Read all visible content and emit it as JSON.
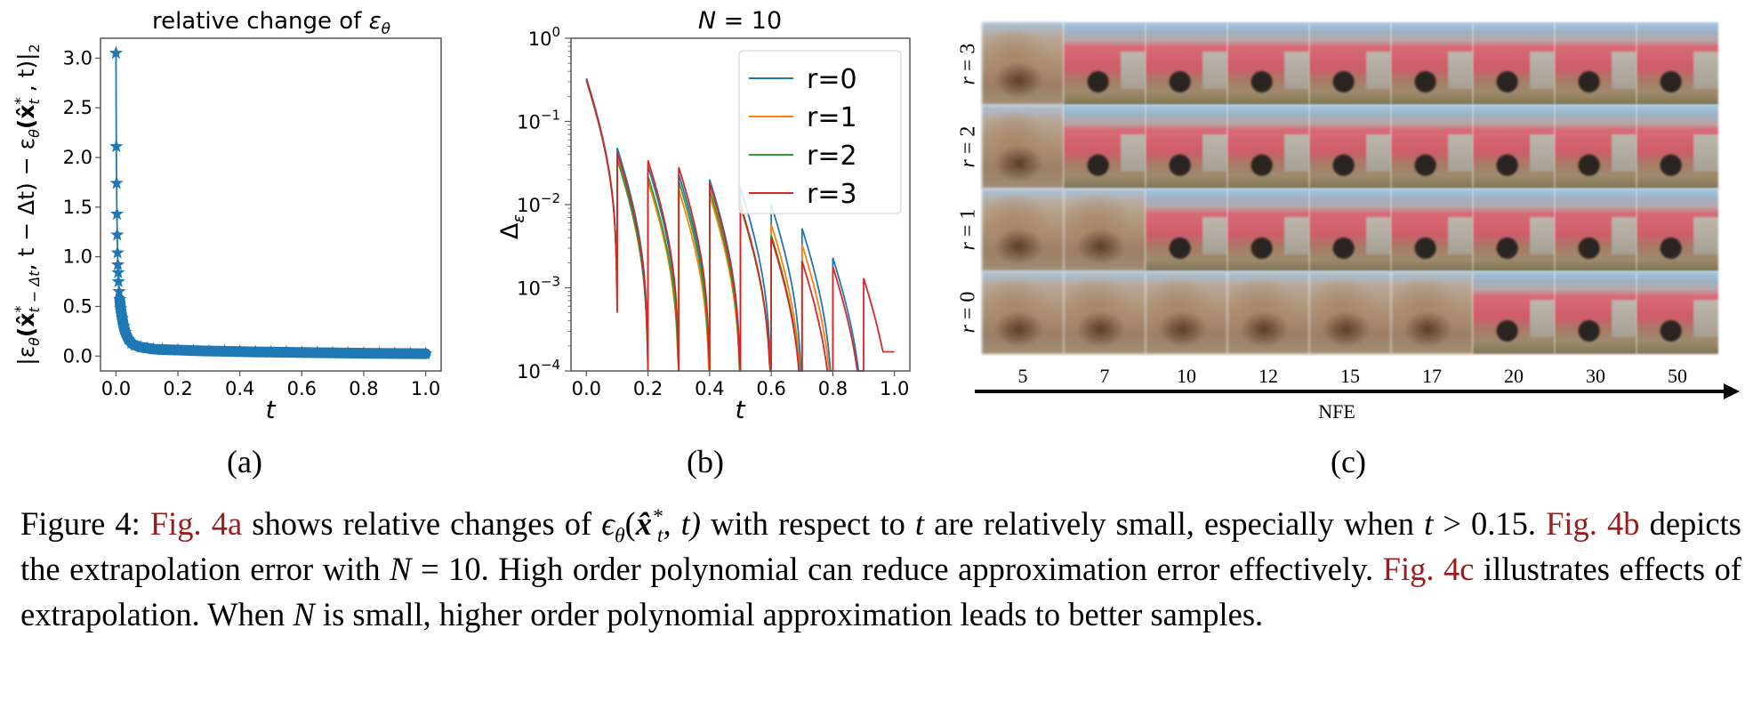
{
  "panels": {
    "a": {
      "subcaption": "(a)"
    },
    "b": {
      "subcaption": "(b)"
    },
    "c": {
      "subcaption": "(c)"
    }
  },
  "chart_data": [
    {
      "type": "line",
      "panel": "a",
      "title": "relative change of εθ",
      "title_parts": {
        "text": "relative change of ",
        "symbol": "ε",
        "sub": "θ"
      },
      "xlabel": "t",
      "ylabel": "|εθ(x̂*t−Δt, t − Δt) − εθ(x̂*t , t)|2",
      "ylabel_parts": {
        "open": "|ε",
        "s1": "θ",
        "p1": "(x̂",
        "sup1": "*",
        "sub1": "t − Δt",
        "p2": ", t − Δt) − ε",
        "s2": "θ",
        "p3": "(x̂",
        "sup2": "*",
        "sub2": "t",
        "p4": " , t)|",
        "sub3": "2"
      },
      "marker": "star",
      "color": "#1f77b4",
      "xlim": [
        -0.05,
        1.05
      ],
      "ylim": [
        -0.15,
        3.2
      ],
      "xticks": [
        "0.0",
        "0.2",
        "0.4",
        "0.6",
        "0.8",
        "1.0"
      ],
      "yticks": [
        "0.0",
        "0.5",
        "1.0",
        "1.5",
        "2.0",
        "2.5",
        "3.0"
      ],
      "x": [
        0,
        0.001,
        0.002,
        0.003,
        0.004,
        0.005,
        0.006,
        0.007,
        0.008,
        0.01,
        0.012,
        0.015,
        0.02,
        0.025,
        0.03,
        0.04,
        0.05,
        0.06,
        0.08,
        0.1,
        0.12,
        0.15,
        0.2,
        0.25,
        0.3,
        0.35,
        0.4,
        0.45,
        0.5,
        0.55,
        0.6,
        0.65,
        0.7,
        0.75,
        0.8,
        0.85,
        0.9,
        0.95,
        1.0
      ],
      "y": [
        3.05,
        2.11,
        1.74,
        1.43,
        1.22,
        1.04,
        0.92,
        0.84,
        0.75,
        0.65,
        0.57,
        0.48,
        0.38,
        0.3,
        0.24,
        0.17,
        0.13,
        0.11,
        0.09,
        0.08,
        0.07,
        0.065,
        0.06,
        0.055,
        0.05,
        0.048,
        0.045,
        0.042,
        0.04,
        0.038,
        0.036,
        0.034,
        0.032,
        0.03,
        0.028,
        0.027,
        0.026,
        0.025,
        0.024
      ]
    },
    {
      "type": "line",
      "panel": "b",
      "title": "N = 10",
      "title_parts": {
        "var": "N",
        "rest": " = 10"
      },
      "xlabel": "t",
      "ylabel": "Δε",
      "ylabel_parts": {
        "base": "Δ",
        "sub": "ε"
      },
      "yscale": "log",
      "xlim": [
        -0.05,
        1.05
      ],
      "ylim": [
        0.0001,
        1
      ],
      "xticks": [
        "0.0",
        "0.2",
        "0.4",
        "0.6",
        "0.8",
        "1.0"
      ],
      "yticks": [
        {
          "base": "10",
          "exp": "0"
        },
        {
          "base": "10",
          "exp": "−1"
        },
        {
          "base": "10",
          "exp": "−2"
        },
        {
          "base": "10",
          "exp": "−3"
        },
        {
          "base": "10",
          "exp": "−4"
        }
      ],
      "legend": "top-right",
      "segment_starts": [
        0,
        0.1,
        0.2,
        0.3,
        0.4,
        0.5,
        0.6,
        0.7,
        0.8,
        0.9
      ],
      "series": [
        {
          "name": "r=0",
          "color": "#1f77b4",
          "segment_start_values": [
            0.33,
            0.048,
            0.029,
            0.023,
            0.02,
            0.016,
            0.01,
            0.0052,
            0.0023,
            null
          ],
          "segment_end_values": [
            0.0015,
            0.0001,
            0.0001,
            0.0001,
            0.0001,
            0.0001,
            0.0001,
            0.0001,
            0.0001,
            null
          ]
        },
        {
          "name": "r=1",
          "color": "#ff7f0e",
          "segment_start_values": [
            0.31,
            0.036,
            0.019,
            0.015,
            0.013,
            0.0095,
            0.0058,
            0.0033,
            null,
            null
          ],
          "segment_end_values": [
            0.001,
            0.0001,
            0.0001,
            0.0001,
            0.0001,
            0.0001,
            0.0001,
            0.0001,
            null,
            null
          ]
        },
        {
          "name": "r=2",
          "color": "#2ca02c",
          "segment_start_values": [
            0.31,
            0.035,
            0.022,
            0.019,
            0.015,
            0.0095,
            0.0043,
            null,
            null,
            null
          ],
          "segment_end_values": [
            0.001,
            0.00015,
            0.00015,
            0.00015,
            0.0001,
            0.0001,
            0.0001,
            null,
            null,
            null
          ]
        },
        {
          "name": "r=3",
          "color": "#d62728",
          "segment_start_values": [
            0.32,
            0.042,
            0.034,
            0.028,
            0.018,
            0.01,
            0.004,
            0.0021,
            0.0018,
            0.0013
          ],
          "segment_end_values": [
            0.0005,
            0.0001,
            0.0001,
            0.0001,
            0.0001,
            0.0001,
            0.0001,
            0.0001,
            0.0001,
            0.00017
          ]
        }
      ]
    }
  ],
  "samples": {
    "x_axis_label": "NFE",
    "nfe": [
      "5",
      "7",
      "10",
      "12",
      "15",
      "17",
      "20",
      "30",
      "50"
    ],
    "rows": [
      {
        "label_var": "r",
        "label_rest": " = 3",
        "cells": [
          "blurry",
          "car",
          "car",
          "car",
          "car",
          "car",
          "car",
          "car",
          "car"
        ]
      },
      {
        "label_var": "r",
        "label_rest": " = 2",
        "cells": [
          "blurry",
          "car",
          "car",
          "car",
          "car",
          "car",
          "car",
          "car",
          "car"
        ]
      },
      {
        "label_var": "r",
        "label_rest": " = 1",
        "cells": [
          "blurry",
          "blurry",
          "car",
          "car",
          "car",
          "car",
          "car",
          "car",
          "car"
        ]
      },
      {
        "label_var": "r",
        "label_rest": " = 0",
        "cells": [
          "blurry",
          "blurry",
          "blurry",
          "blurry",
          "blurry",
          "blurry",
          "car",
          "car",
          "car"
        ]
      }
    ]
  },
  "caption": {
    "s1": "Figure 4: ",
    "link1": "Fig. 4a",
    "s2": " shows relative changes of ",
    "m1_eps": "ϵ",
    "m1_sub": "θ",
    "m1_open": "(",
    "m1_x": "x̂",
    "m1_sup": "*",
    "m1_xsub": "t",
    "m1_rest": ", t)",
    "s3": " with respect to ",
    "m2": "t",
    "s4": " are relatively small, especially when ",
    "m3": "t",
    "s5": " > 0.15. ",
    "link2": "Fig. 4b",
    "s6": " depicts the extrapolation error with ",
    "m4": "N",
    "s7": " = 10. High order polynomial can reduce approximation error effectively. ",
    "link3": "Fig. 4c",
    "s8": " illustrates effects of extrapolation. When ",
    "m5": "N",
    "s9": " is small, higher order polynomial approximation leads to better samples."
  },
  "colors": {
    "link": "#9b1c1c",
    "axes": "#555555"
  }
}
